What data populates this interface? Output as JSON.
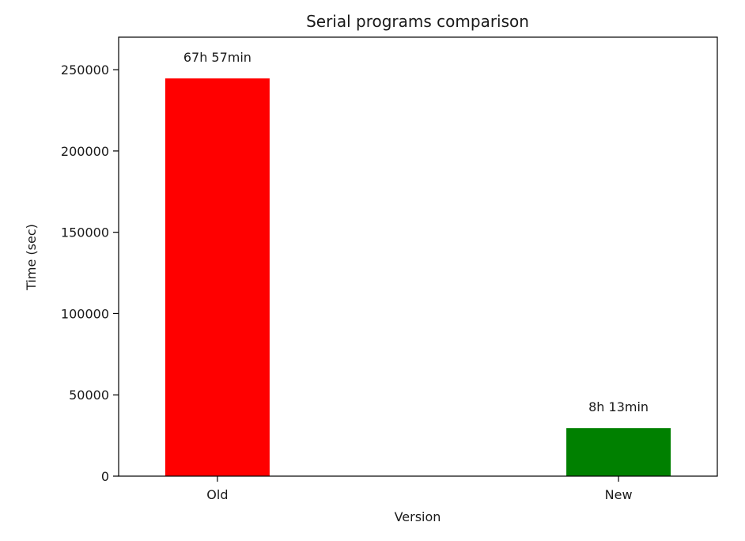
{
  "chart_data": {
    "type": "bar",
    "title": "Serial programs comparison",
    "xlabel": "Version",
    "ylabel": "Time (sec)",
    "categories": [
      "Old",
      "New"
    ],
    "values": [
      244620,
      29580
    ],
    "data_labels": [
      "67h 57min",
      "8h 13min"
    ],
    "colors": [
      "#ff0000",
      "#008000"
    ],
    "ylim": [
      0,
      270000
    ],
    "yticks": [
      0,
      50000,
      100000,
      150000,
      200000,
      250000
    ],
    "ytick_labels": [
      "0",
      "50000",
      "100000",
      "150000",
      "200000",
      "250000"
    ],
    "grid": false,
    "legend": "none"
  }
}
